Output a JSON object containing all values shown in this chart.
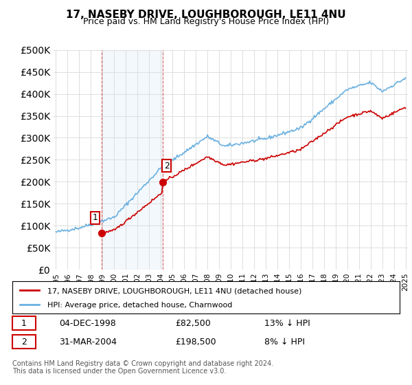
{
  "title": "17, NASEBY DRIVE, LOUGHBOROUGH, LE11 4NU",
  "subtitle": "Price paid vs. HM Land Registry's House Price Index (HPI)",
  "legend_line1": "17, NASEBY DRIVE, LOUGHBOROUGH, LE11 4NU (detached house)",
  "legend_line2": "HPI: Average price, detached house, Charnwood",
  "sale1_label": "1",
  "sale1_date": "04-DEC-1998",
  "sale1_price": "£82,500",
  "sale1_hpi": "13% ↓ HPI",
  "sale2_label": "2",
  "sale2_date": "31-MAR-2004",
  "sale2_price": "£198,500",
  "sale2_hpi": "8% ↓ HPI",
  "footer": "Contains HM Land Registry data © Crown copyright and database right 2024.\nThis data is licensed under the Open Government Licence v3.0.",
  "hpi_color": "#6ab0e0",
  "price_color": "#cc0000",
  "sale_color": "#cc0000",
  "marker_color": "#cc0000",
  "background_plot": "#ffffff",
  "background_fig": "#ffffff",
  "grid_color": "#dddddd",
  "ylim": [
    0,
    500000
  ],
  "yticks": [
    0,
    50000,
    100000,
    150000,
    200000,
    250000,
    300000,
    350000,
    400000,
    450000,
    500000
  ],
  "x_start_year": 1995,
  "x_end_year": 2025
}
